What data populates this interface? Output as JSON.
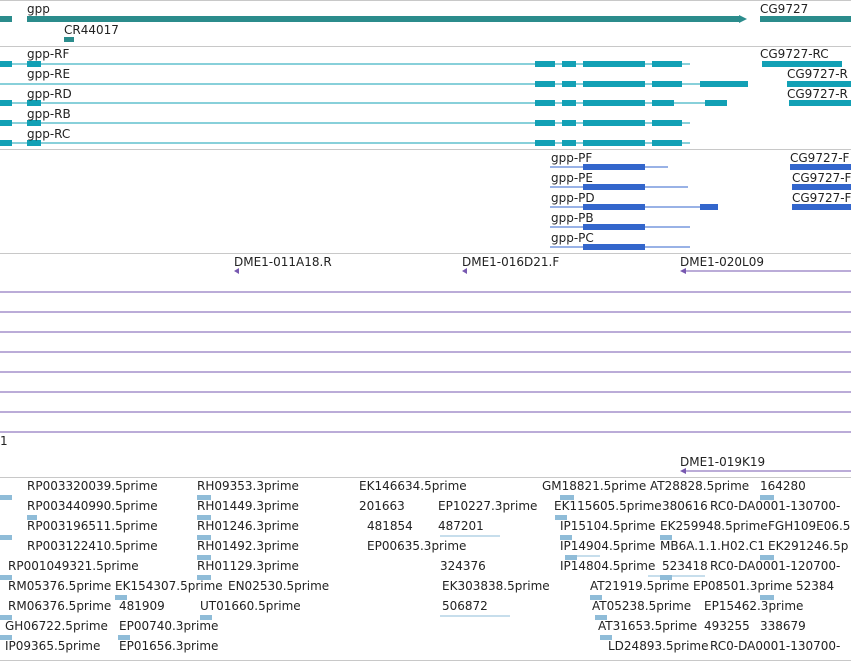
{
  "gene_track": {
    "genes": [
      "gpp",
      "CR44017",
      "CG9727"
    ]
  },
  "transcript_track": {
    "transcripts": [
      "gpp-RF",
      "gpp-RE",
      "gpp-RD",
      "gpp-RB",
      "gpp-RC",
      "CG9727-RC",
      "CG9727-R",
      "CG9727-R"
    ]
  },
  "protein_track": {
    "proteins": [
      "gpp-PF",
      "gpp-PE",
      "gpp-PD",
      "gpp-PB",
      "gpp-PC",
      "CG9727-F",
      "CG9727-F",
      "CG9727-F"
    ]
  },
  "clone_track": {
    "clones": [
      "DME1-011A18.R",
      "DME1-016D21.F",
      "DME1-020L09"
    ],
    "index_label": "1",
    "clone_lower": "DME1-019K19"
  },
  "est_track": {
    "ests": [
      "RP003320039.5prime",
      "RH09353.3prime",
      "EK146634.5prime",
      "GM18821.5prime",
      "AT28828.5prime",
      "164280",
      "RP003440990.5prime",
      "RH01449.3prime",
      "201663",
      "EP10227.3prime",
      "EK115605.5prime",
      "380616",
      "RC0-DA0001-130700-",
      "RP003196511.5prime",
      "RH01246.3prime",
      "481854",
      "487201",
      "IP15104.5prime",
      "EK259948.5prime",
      "FGH109E06.5",
      "RP003122410.5prime",
      "RH01492.3prime",
      "EP00635.3prime",
      "IP14904.5prime",
      "MB6A.1.1.H02.C1",
      "EK291246.5p",
      "RP001049321.5prime",
      "RH01129.3prime",
      "324376",
      "IP14804.5prime",
      "523418",
      "RC0-DA0001-120700-",
      "RM05376.5prime",
      "EK154307.5prime",
      "EN02530.5prime",
      "EK303838.5prime",
      "AT21919.5prime",
      "EP08501.3prime",
      "52384",
      "RM06376.5prime",
      "481909",
      "UT01660.5prime",
      "506872",
      "AT05238.5prime",
      "EP15462.3prime",
      "GH06722.5prime",
      "EP00740.3prime",
      "AT31653.5prime",
      "493255",
      "338679",
      "IP09365.5prime",
      "EP01656.3prime",
      "LD24893.5prime",
      "RC0-DA0001-130700-"
    ]
  },
  "colors": {
    "gene": "#2b8c8c",
    "transcript": "#12a0b5",
    "protein": "#3366cc",
    "clone": "#7758b0",
    "est": "#8fbcd8"
  }
}
